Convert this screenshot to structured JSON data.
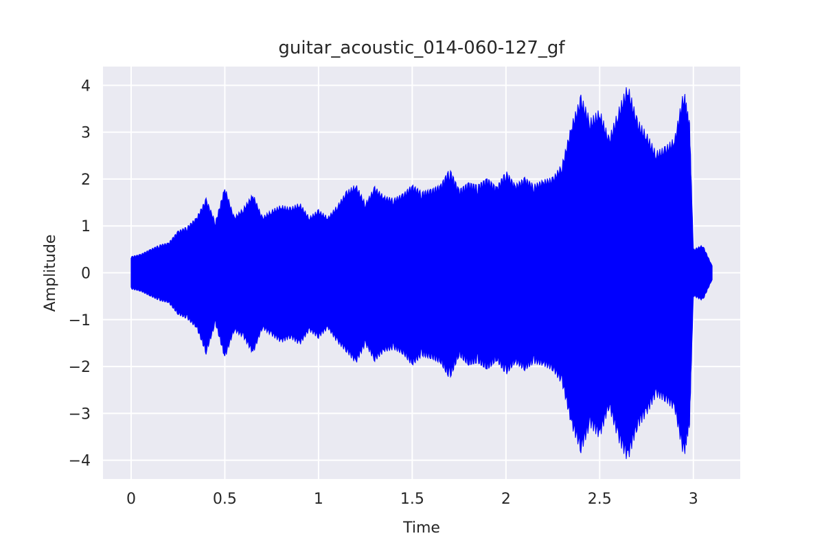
{
  "chart_data": {
    "type": "line",
    "title": "guitar_acoustic_014-060-127_gf",
    "xlabel": "Time",
    "ylabel": "Amplitude",
    "xlim": [
      -0.15,
      3.25
    ],
    "ylim": [
      -4.4,
      4.4
    ],
    "x_ticks": [
      0,
      0.5,
      1,
      1.5,
      2,
      2.5,
      3
    ],
    "x_tick_labels": [
      "0",
      "0.5",
      "1",
      "1.5",
      "2",
      "2.5",
      "3"
    ],
    "y_ticks": [
      4,
      3,
      2,
      1,
      0,
      -1,
      -2,
      -3,
      -4
    ],
    "y_tick_labels": [
      "4",
      "3",
      "2",
      "1",
      "0",
      "−1",
      "−2",
      "−3",
      "−4"
    ],
    "grid": true,
    "colors": {
      "background": "#eaeaf2",
      "grid": "#ffffff",
      "series": "#0000ff",
      "text": "#262626"
    },
    "series": [
      {
        "time": [
          0,
          0.05,
          0.1,
          0.15,
          0.2,
          0.25,
          0.3,
          0.35,
          0.4,
          0.45,
          0.5,
          0.55,
          0.6,
          0.65,
          0.7,
          0.75,
          0.8,
          0.85,
          0.9,
          0.95,
          1.0,
          1.05,
          1.1,
          1.15,
          1.2,
          1.25,
          1.3,
          1.35,
          1.4,
          1.45,
          1.5,
          1.55,
          1.6,
          1.65,
          1.7,
          1.75,
          1.8,
          1.85,
          1.9,
          1.95,
          2.0,
          2.05,
          2.1,
          2.15,
          2.2,
          2.25,
          2.3,
          2.35,
          2.4,
          2.45,
          2.5,
          2.55,
          2.6,
          2.65,
          2.7,
          2.75,
          2.8,
          2.85,
          2.9,
          2.95,
          2.98,
          3.0,
          3.05,
          3.1
        ],
        "upper": [
          0.35,
          0.4,
          0.5,
          0.6,
          0.65,
          0.9,
          1.0,
          1.2,
          1.6,
          1.1,
          1.85,
          1.2,
          1.4,
          1.7,
          1.2,
          1.35,
          1.45,
          1.4,
          1.5,
          1.2,
          1.35,
          1.2,
          1.45,
          1.75,
          1.9,
          1.5,
          1.85,
          1.65,
          1.6,
          1.7,
          1.9,
          1.75,
          1.8,
          1.9,
          2.25,
          1.8,
          1.95,
          1.9,
          2.05,
          1.85,
          2.2,
          1.9,
          2.05,
          1.9,
          2.0,
          2.05,
          2.35,
          3.2,
          3.8,
          3.3,
          3.5,
          2.9,
          3.5,
          4.05,
          3.3,
          3.0,
          2.6,
          2.7,
          2.9,
          3.95,
          3.2,
          0.5,
          0.6,
          0.15
        ],
        "lower": [
          -0.35,
          -0.4,
          -0.5,
          -0.6,
          -0.65,
          -0.9,
          -1.0,
          -1.2,
          -1.75,
          -1.1,
          -1.85,
          -1.25,
          -1.4,
          -1.75,
          -1.2,
          -1.35,
          -1.5,
          -1.4,
          -1.55,
          -1.25,
          -1.4,
          -1.2,
          -1.5,
          -1.7,
          -1.95,
          -1.55,
          -1.9,
          -1.7,
          -1.65,
          -1.75,
          -2.0,
          -1.8,
          -1.85,
          -1.95,
          -2.3,
          -1.8,
          -2.0,
          -1.95,
          -2.1,
          -1.9,
          -2.2,
          -1.95,
          -2.1,
          -1.95,
          -2.0,
          -2.1,
          -2.4,
          -3.3,
          -3.85,
          -3.3,
          -3.55,
          -2.9,
          -3.6,
          -4.05,
          -3.35,
          -3.05,
          -2.65,
          -2.75,
          -2.95,
          -4.0,
          -3.25,
          -0.5,
          -0.6,
          -0.15
        ]
      }
    ]
  }
}
